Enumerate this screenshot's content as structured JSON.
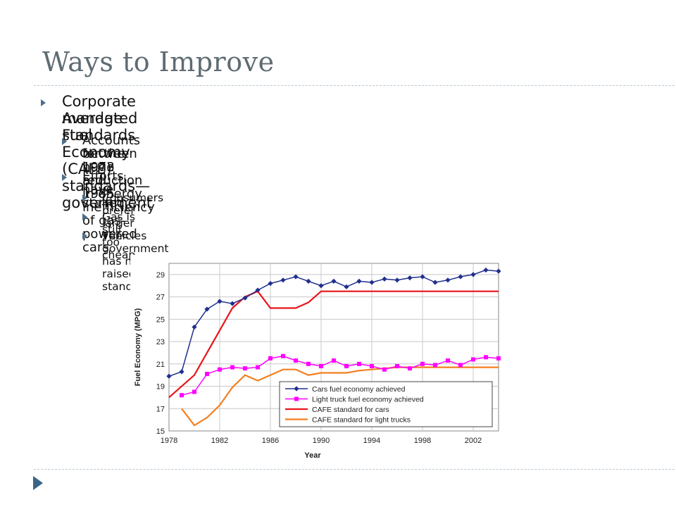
{
  "slide": {
    "title": "Ways to Improve",
    "bullets": [
      {
        "level": 1,
        "text": "Corporate Average Fuel Economy (CAFE) standards—government"
      },
      {
        "level": 1,
        "text": "mandated standards"
      },
      {
        "level": 2,
        "text": "Accounts for the huge reduction in energy inefficiency of gas-powered cars"
      },
      {
        "level": 2,
        "text": "between 1973 and 1985"
      },
      {
        "level": 2,
        "text": "Efforts have stalled…"
      },
      {
        "level": 3,
        "text": "Consumers prefer larger vehicles"
      },
      {
        "level": 3,
        "text": "Gas is still too cheap"
      },
      {
        "level": 3,
        "text": "The government has not raised standards"
      }
    ]
  },
  "colors": {
    "title": "#5f6b73",
    "accent": "#3a6587",
    "cars": "#1f2f8f",
    "trucks": "#ff00ff",
    "cafe_cars": "#e8141a",
    "cafe_trucks": "#f47f1f",
    "grid": "#c8c8c8"
  },
  "chart_data": {
    "type": "line",
    "title": "",
    "xlabel": "Year",
    "ylabel": "Fuel Economy (MPG)",
    "xlim": [
      1978,
      2004
    ],
    "ylim": [
      15,
      30
    ],
    "xticks": [
      1978,
      1982,
      1986,
      1990,
      1994,
      1998,
      2002
    ],
    "yticks": [
      15,
      17,
      19,
      21,
      23,
      25,
      27,
      29
    ],
    "grid": true,
    "legend_position": "bottom-right",
    "series": [
      {
        "name": "Cars fuel economy achieved",
        "marker": "diamond",
        "x": [
          1978,
          1979,
          1980,
          1981,
          1982,
          1983,
          1984,
          1985,
          1986,
          1987,
          1988,
          1989,
          1990,
          1991,
          1992,
          1993,
          1994,
          1995,
          1996,
          1997,
          1998,
          1999,
          2000,
          2001,
          2002,
          2003,
          2004
        ],
        "y": [
          19.9,
          20.3,
          24.3,
          25.9,
          26.6,
          26.4,
          26.9,
          27.6,
          28.2,
          28.5,
          28.8,
          28.4,
          28.0,
          28.4,
          27.9,
          28.4,
          28.3,
          28.6,
          28.5,
          28.7,
          28.8,
          28.3,
          28.5,
          28.8,
          29.0,
          29.4,
          29.3
        ]
      },
      {
        "name": "Light truck fuel economy achieved",
        "marker": "square",
        "x": [
          1979,
          1980,
          1981,
          1982,
          1983,
          1984,
          1985,
          1986,
          1987,
          1988,
          1989,
          1990,
          1991,
          1992,
          1993,
          1994,
          1995,
          1996,
          1997,
          1998,
          1999,
          2000,
          2001,
          2002,
          2003,
          2004
        ],
        "y": [
          18.2,
          18.5,
          20.1,
          20.5,
          20.7,
          20.6,
          20.7,
          21.5,
          21.7,
          21.3,
          21.0,
          20.8,
          21.3,
          20.8,
          21.0,
          20.8,
          20.5,
          20.8,
          20.6,
          21.0,
          20.9,
          21.3,
          20.9,
          21.4,
          21.6,
          21.5
        ]
      },
      {
        "name": "CAFE standard for cars",
        "marker": "none",
        "x": [
          1978,
          1980,
          1981,
          1982,
          1983,
          1984,
          1985,
          1986,
          1987,
          1988,
          1989,
          1990,
          2004
        ],
        "y": [
          18.0,
          20.0,
          22.0,
          24.0,
          26.0,
          27.0,
          27.5,
          26.0,
          26.0,
          26.0,
          26.5,
          27.5,
          27.5
        ]
      },
      {
        "name": "CAFE standard for light trucks",
        "marker": "none",
        "x": [
          1979,
          1980,
          1981,
          1982,
          1983,
          1984,
          1985,
          1986,
          1987,
          1988,
          1989,
          1990,
          1991,
          1992,
          1993,
          1994,
          1995,
          1996,
          2004
        ],
        "y": [
          17.0,
          15.5,
          16.2,
          17.3,
          18.9,
          20.0,
          19.5,
          20.0,
          20.5,
          20.5,
          20.0,
          20.2,
          20.2,
          20.2,
          20.4,
          20.5,
          20.6,
          20.7,
          20.7
        ]
      }
    ]
  }
}
